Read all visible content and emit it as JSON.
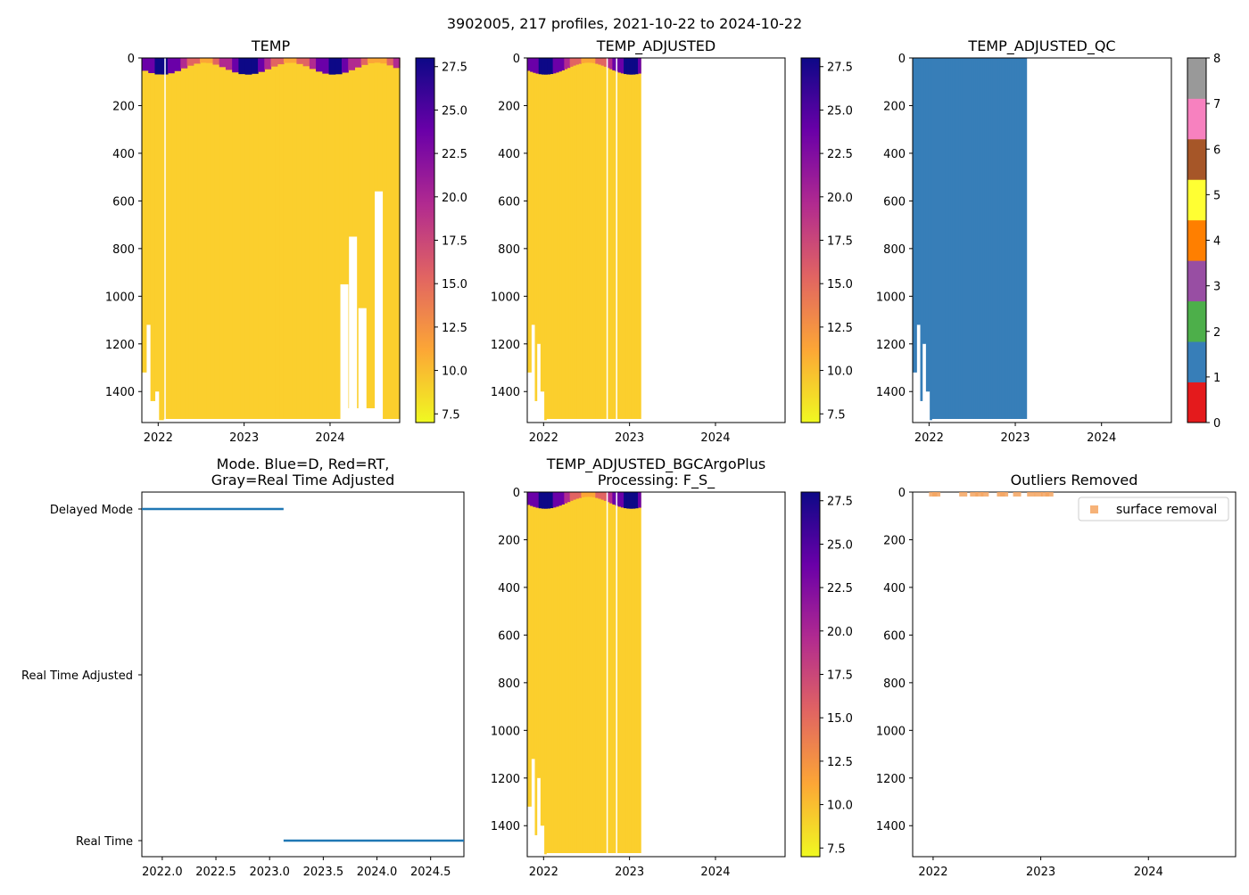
{
  "suptitle": "3902005, 217 profiles, 2021-10-22 to 2024-10-22",
  "colors": {
    "temp_fill": "#fbcf2d",
    "qc_fill": "#377eb8",
    "mode_line": "#1f77b4",
    "outlier": "#f4a460",
    "qc_cmap": [
      "#e41a1c",
      "#377eb8",
      "#4daf4a",
      "#984ea3",
      "#ff7f00",
      "#ffff33",
      "#a65628",
      "#f781bf",
      "#999999"
    ],
    "plasma_stops": [
      "#f0f921",
      "#fca636",
      "#e16462",
      "#b12a90",
      "#6a00a8",
      "#0d0887"
    ]
  },
  "depth_ticks": [
    "0",
    "200",
    "400",
    "600",
    "800",
    "1000",
    "1200",
    "1400"
  ],
  "year_ticks": [
    "2022",
    "2023",
    "2024"
  ],
  "temp_colorbar_ticks": [
    "7.5",
    "10.0",
    "12.5",
    "15.0",
    "17.5",
    "20.0",
    "22.5",
    "25.0",
    "27.5"
  ],
  "qc_colorbar_ticks": [
    "0",
    "1",
    "2",
    "3",
    "4",
    "5",
    "6",
    "7",
    "8"
  ],
  "chart_data": [
    {
      "id": "temp",
      "type": "heatmap",
      "title": "TEMP",
      "x_range": [
        2021.81,
        2024.81
      ],
      "y_range": [
        1530,
        0
      ],
      "data_end": 2024.81,
      "colorbar_range": [
        7,
        28
      ],
      "colorbar_ticks": [
        7.5,
        10.0,
        12.5,
        15.0,
        17.5,
        20.0,
        22.5,
        25.0,
        27.5
      ]
    },
    {
      "id": "temp_adj",
      "type": "heatmap",
      "title": "TEMP_ADJUSTED",
      "x_range": [
        2021.81,
        2024.81
      ],
      "y_range": [
        1530,
        0
      ],
      "data_end": 2023.13,
      "colorbar_range": [
        7,
        28
      ],
      "colorbar_ticks": [
        7.5,
        10.0,
        12.5,
        15.0,
        17.5,
        20.0,
        22.5,
        25.0,
        27.5
      ]
    },
    {
      "id": "temp_qc",
      "type": "heatmap",
      "title": "TEMP_ADJUSTED_QC",
      "x_range": [
        2021.81,
        2024.81
      ],
      "y_range": [
        1530,
        0
      ],
      "data_end": 2023.13,
      "colorbar_range": [
        0,
        8
      ],
      "colorbar_ticks": [
        0,
        1,
        2,
        3,
        4,
        5,
        6,
        7,
        8
      ],
      "qc_value": 1
    },
    {
      "id": "mode",
      "type": "line",
      "title": "Mode. Blue=D, Red=RT,",
      "title2": "Gray=Real Time Adjusted",
      "x_range": [
        2021.81,
        2024.81
      ],
      "xticks": [
        "2022.0",
        "2022.5",
        "2023.0",
        "2023.5",
        "2024.0",
        "2024.5"
      ],
      "ylabels": [
        "Delayed Mode",
        "Real Time Adjusted",
        "Real Time"
      ],
      "series": [
        {
          "name": "Delayed Mode",
          "x": [
            2021.81,
            2023.13
          ],
          "level": 1
        },
        {
          "name": "Real Time",
          "x": [
            2023.13,
            2024.81
          ],
          "level": 3
        }
      ]
    },
    {
      "id": "temp_bgc",
      "type": "heatmap",
      "title": "TEMP_ADJUSTED_BGCArgoPlus",
      "title2": "Processing: F_S_",
      "x_range": [
        2021.81,
        2024.81
      ],
      "y_range": [
        1530,
        0
      ],
      "data_end": 2023.13,
      "colorbar_range": [
        7,
        28
      ],
      "colorbar_ticks": [
        7.5,
        10.0,
        12.5,
        15.0,
        17.5,
        20.0,
        22.5,
        25.0,
        27.5
      ]
    },
    {
      "id": "outliers",
      "type": "scatter",
      "title": "Outliers Removed",
      "x_range": [
        2021.81,
        2024.81
      ],
      "y_range": [
        1530,
        0
      ],
      "legend": "surface removal",
      "legend_loc": "upper right",
      "x": [
        2022.0,
        2022.03,
        2022.28,
        2022.38,
        2022.43,
        2022.48,
        2022.63,
        2022.66,
        2022.78,
        2022.91,
        2022.98,
        2023.04,
        2023.08
      ],
      "y": [
        0,
        0,
        0,
        0,
        0,
        0,
        0,
        0,
        0,
        0,
        0,
        0,
        0
      ]
    }
  ]
}
